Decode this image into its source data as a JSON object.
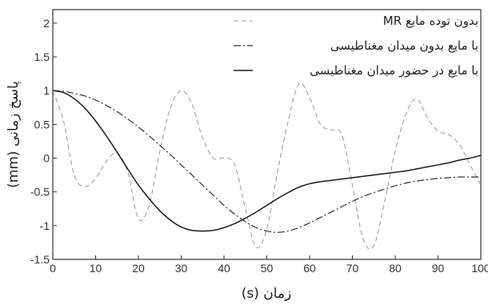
{
  "chart_data": {
    "type": "line",
    "xlabel": "زمان (s)",
    "ylabel": "پاسخ زمانی (mm)",
    "xlim": [
      0,
      100
    ],
    "ylim": [
      -1.5,
      2.2
    ],
    "xticks": [
      "0",
      "10",
      "20",
      "30",
      "40",
      "50",
      "60",
      "70",
      "80",
      "90",
      "100"
    ],
    "yticks": [
      "-1.5",
      "-1",
      "-0.5",
      "0",
      "0.5",
      "1",
      "1.5",
      "2"
    ],
    "grid": false,
    "legend_position": "top-right",
    "x": [
      0,
      2.5,
      5,
      7.5,
      10,
      12.5,
      15,
      17.5,
      20,
      22.5,
      25,
      27.5,
      30,
      32.5,
      35,
      37.5,
      40,
      42.5,
      45,
      47.5,
      50,
      52.5,
      55,
      57.5,
      60,
      62.5,
      65,
      67.5,
      70,
      72.5,
      75,
      77.5,
      80,
      82.5,
      85,
      87.5,
      90,
      92.5,
      95,
      97.5,
      100
    ],
    "series": [
      {
        "name": "بدون توده مایع MR",
        "style": "dashed-gray",
        "color": "#a0a0a0",
        "values": [
          1.0,
          0.55,
          -0.25,
          -0.42,
          -0.3,
          -0.05,
          0.08,
          -0.2,
          -0.9,
          -0.7,
          0.1,
          0.75,
          1.0,
          0.8,
          0.3,
          0.0,
          0.0,
          -0.1,
          -0.75,
          -1.32,
          -1.05,
          -0.2,
          0.55,
          1.1,
          0.9,
          0.5,
          0.42,
          0.35,
          -0.4,
          -1.2,
          -1.3,
          -0.65,
          0.1,
          0.65,
          0.88,
          0.6,
          0.4,
          0.35,
          0.2,
          -0.1,
          -0.4
        ]
      },
      {
        "name": "با مایع بدون میدان مغناطیسی",
        "style": "dash-dot",
        "color": "#333333",
        "values": [
          1.0,
          0.99,
          0.96,
          0.92,
          0.86,
          0.78,
          0.69,
          0.58,
          0.46,
          0.33,
          0.19,
          0.05,
          -0.1,
          -0.25,
          -0.4,
          -0.55,
          -0.7,
          -0.83,
          -0.94,
          -1.03,
          -1.08,
          -1.1,
          -1.08,
          -1.03,
          -0.96,
          -0.88,
          -0.8,
          -0.72,
          -0.64,
          -0.57,
          -0.51,
          -0.46,
          -0.41,
          -0.37,
          -0.34,
          -0.32,
          -0.3,
          -0.29,
          -0.28,
          -0.28,
          -0.28
        ]
      },
      {
        "name": "با مایع در حضور میدان مغناطیسی",
        "style": "solid",
        "color": "#1a1a1a",
        "values": [
          1.0,
          0.97,
          0.88,
          0.74,
          0.55,
          0.33,
          0.09,
          -0.16,
          -0.4,
          -0.6,
          -0.78,
          -0.92,
          -1.02,
          -1.07,
          -1.08,
          -1.07,
          -1.03,
          -0.97,
          -0.89,
          -0.8,
          -0.7,
          -0.6,
          -0.51,
          -0.43,
          -0.38,
          -0.35,
          -0.33,
          -0.31,
          -0.29,
          -0.27,
          -0.25,
          -0.23,
          -0.21,
          -0.19,
          -0.16,
          -0.13,
          -0.1,
          -0.07,
          -0.03,
          0.0,
          0.04
        ]
      }
    ]
  }
}
